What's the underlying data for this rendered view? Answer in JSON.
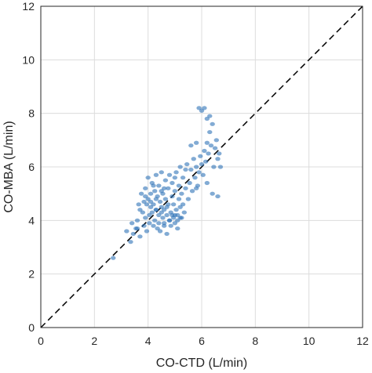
{
  "chart_data": {
    "type": "scatter",
    "title": "",
    "xlabel": "CO-CTD (L/min)",
    "ylabel": "CO-MBA (L/min)",
    "xlim": [
      0,
      12
    ],
    "ylim": [
      0,
      12
    ],
    "xticks": [
      0,
      2,
      4,
      6,
      8,
      10,
      12
    ],
    "yticks": [
      0,
      2,
      4,
      6,
      8,
      10,
      12
    ],
    "xtick_labels": [
      "0",
      "2",
      "4",
      "6",
      "8",
      "10",
      "12"
    ],
    "ytick_labels": [
      "0",
      "2",
      "4",
      "6",
      "8",
      "10",
      "12"
    ],
    "grid": true,
    "legend": "none",
    "point_color": "#2e73b8",
    "reference_line": {
      "style": "dashed",
      "color": "#000000",
      "from": [
        0,
        0
      ],
      "to": [
        12,
        12
      ]
    },
    "series": [
      {
        "x": [
          2.7,
          3.2,
          3.35,
          3.45,
          3.55,
          3.6,
          3.65,
          3.7,
          3.7,
          3.75,
          3.8,
          3.85,
          3.85,
          3.9,
          3.9,
          3.95,
          3.95,
          4.0,
          4.0,
          4.05,
          4.05,
          4.1,
          4.1,
          4.15,
          4.15,
          4.2,
          4.2,
          4.25,
          4.25,
          4.3,
          4.3,
          4.35,
          4.35,
          4.4,
          4.4,
          4.45,
          4.45,
          4.5,
          4.5,
          4.55,
          4.55,
          4.6,
          4.6,
          4.65,
          4.65,
          4.7,
          4.7,
          4.75,
          4.75,
          4.8,
          4.8,
          4.85,
          4.85,
          4.9,
          4.9,
          4.95,
          4.95,
          5.0,
          5.0,
          5.05,
          5.05,
          5.1,
          5.1,
          5.15,
          5.15,
          5.2,
          5.2,
          5.25,
          5.25,
          5.3,
          5.3,
          5.35,
          5.4,
          5.45,
          5.5,
          5.55,
          5.6,
          5.65,
          5.7,
          5.75,
          5.8,
          5.85,
          5.9,
          5.95,
          6.0,
          6.05,
          6.1,
          6.15,
          6.2,
          6.25,
          6.3,
          6.35,
          6.4,
          6.45,
          6.5,
          6.55,
          6.6,
          6.65,
          6.7,
          4.4,
          4.6,
          4.8,
          5.0,
          5.2,
          4.3,
          4.5,
          4.7,
          4.9,
          5.1,
          3.9,
          4.1,
          4.3,
          4.5,
          5.9,
          6.0,
          6.1,
          6.2,
          6.3,
          5.6,
          5.8,
          6.4,
          6.6,
          3.4,
          3.6,
          4.2,
          4.6,
          5.0,
          5.4,
          5.8,
          6.2
        ],
        "y": [
          2.6,
          3.6,
          3.2,
          3.5,
          3.7,
          4.0,
          4.6,
          3.4,
          4.4,
          5.0,
          4.3,
          3.8,
          4.7,
          4.1,
          5.2,
          4.6,
          3.6,
          4.8,
          5.6,
          4.2,
          3.9,
          5.0,
          4.5,
          4.3,
          5.4,
          3.8,
          4.6,
          5.1,
          4.0,
          4.4,
          5.7,
          3.7,
          4.9,
          4.2,
          5.3,
          4.7,
          3.6,
          4.5,
          5.8,
          4.1,
          5.0,
          3.9,
          4.4,
          5.5,
          4.8,
          4.2,
          3.5,
          4.6,
          5.2,
          4.0,
          5.7,
          4.3,
          3.8,
          4.9,
          5.4,
          4.1,
          4.6,
          3.9,
          5.1,
          4.4,
          5.8,
          4.2,
          3.7,
          4.8,
          5.3,
          4.5,
          6.0,
          4.1,
          5.0,
          4.6,
          5.6,
          4.3,
          5.2,
          6.1,
          4.8,
          5.4,
          5.9,
          5.1,
          6.3,
          5.6,
          6.0,
          5.3,
          5.8,
          6.4,
          6.1,
          5.7,
          6.6,
          6.2,
          6.9,
          6.5,
          7.3,
          6.8,
          7.6,
          6.0,
          6.7,
          7.0,
          6.3,
          6.5,
          6.0,
          3.9,
          3.8,
          4.0,
          4.2,
          4.1,
          4.4,
          4.3,
          4.5,
          4.2,
          4.0,
          4.9,
          4.7,
          4.8,
          5.1,
          8.2,
          8.1,
          8.2,
          7.8,
          7.9,
          6.8,
          6.9,
          5.0,
          4.9,
          3.9,
          3.7,
          5.3,
          5.2,
          5.6,
          5.9,
          5.2,
          5.4
        ]
      }
    ]
  }
}
